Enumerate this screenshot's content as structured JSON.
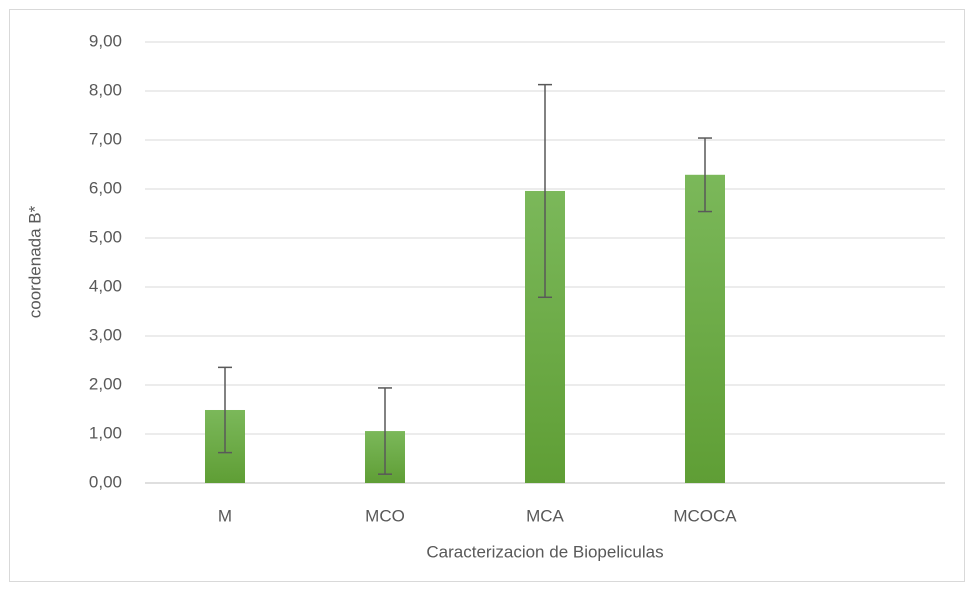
{
  "chart_data": {
    "type": "bar",
    "x_label": "Caracterizacion de Biopeliculas",
    "y_label": "coordenada B*",
    "categories": [
      "M",
      "MCO",
      "MCA",
      "MCOCA",
      null
    ],
    "values": [
      1.49,
      1.06,
      5.96,
      6.29,
      null
    ],
    "errors": [
      0.87,
      0.88,
      2.17,
      0.75,
      null
    ],
    "color": "#70ad47",
    "ylim": [
      0,
      9
    ],
    "yticks": [
      {
        "value": 0,
        "label": "0,00"
      },
      {
        "value": 1,
        "label": "1,00"
      },
      {
        "value": 2,
        "label": "2,00"
      },
      {
        "value": 3,
        "label": "3,00"
      },
      {
        "value": 4,
        "label": "4,00"
      },
      {
        "value": 5,
        "label": "5,00"
      },
      {
        "value": 6,
        "label": "6,00"
      },
      {
        "value": 7,
        "label": "7,00"
      },
      {
        "value": 8,
        "label": "8,00"
      },
      {
        "value": 9,
        "label": "9,00"
      }
    ],
    "grid": true
  }
}
